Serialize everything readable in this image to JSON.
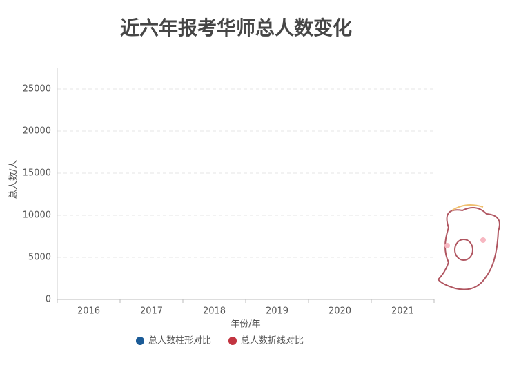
{
  "chart_data": {
    "type": "bar",
    "title": "近六年报考华师总人数变化",
    "x_label": "年份/年",
    "y_label": "总人数/人",
    "categories": [
      "2016",
      "2017",
      "2018",
      "2019",
      "2020",
      "2021"
    ],
    "series": [
      {
        "name": "总人数柱形对比",
        "type": "bar",
        "color": "#1b5b97",
        "values": [
          null,
          null,
          null,
          null,
          null,
          null
        ]
      },
      {
        "name": "总人数折线对比",
        "type": "line",
        "color": "#c23440",
        "values": [
          null,
          null,
          null,
          null,
          null,
          null
        ]
      }
    ],
    "ylim": [
      0,
      27500
    ],
    "yticks": [
      0,
      5000,
      10000,
      15000,
      20000,
      25000
    ],
    "grid": true
  }
}
